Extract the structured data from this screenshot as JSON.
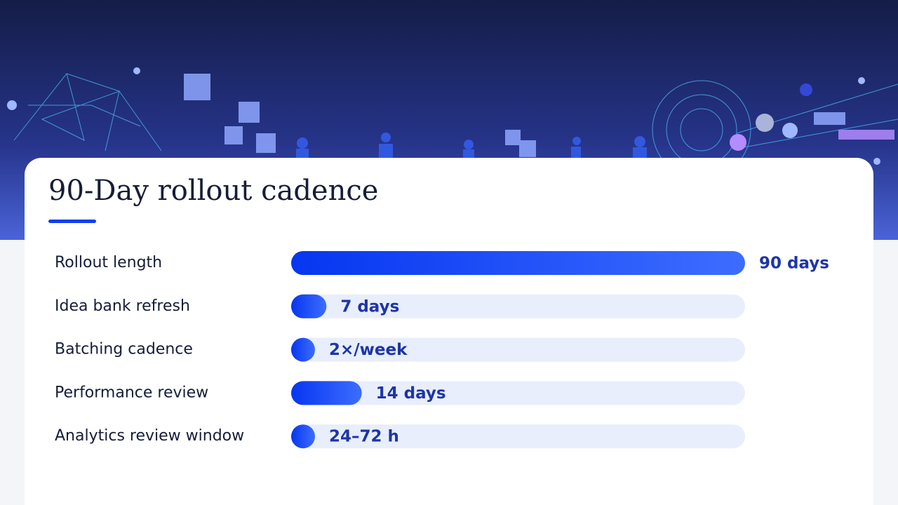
{
  "chart_data": {
    "type": "bar",
    "orientation": "horizontal",
    "title": "90-Day rollout cadence",
    "categories": [
      "Rollout length",
      "Idea bank refresh",
      "Batching cadence",
      "Performance review",
      "Analytics review window"
    ],
    "values": [
      90,
      7,
      3.5,
      14,
      3
    ],
    "value_labels": [
      "90 days",
      "7 days",
      "2×/week",
      "14 days",
      "24–72 h"
    ],
    "xlim": [
      0,
      90
    ],
    "color": "#0b3ff0",
    "track_color": "#e8eefb"
  }
}
